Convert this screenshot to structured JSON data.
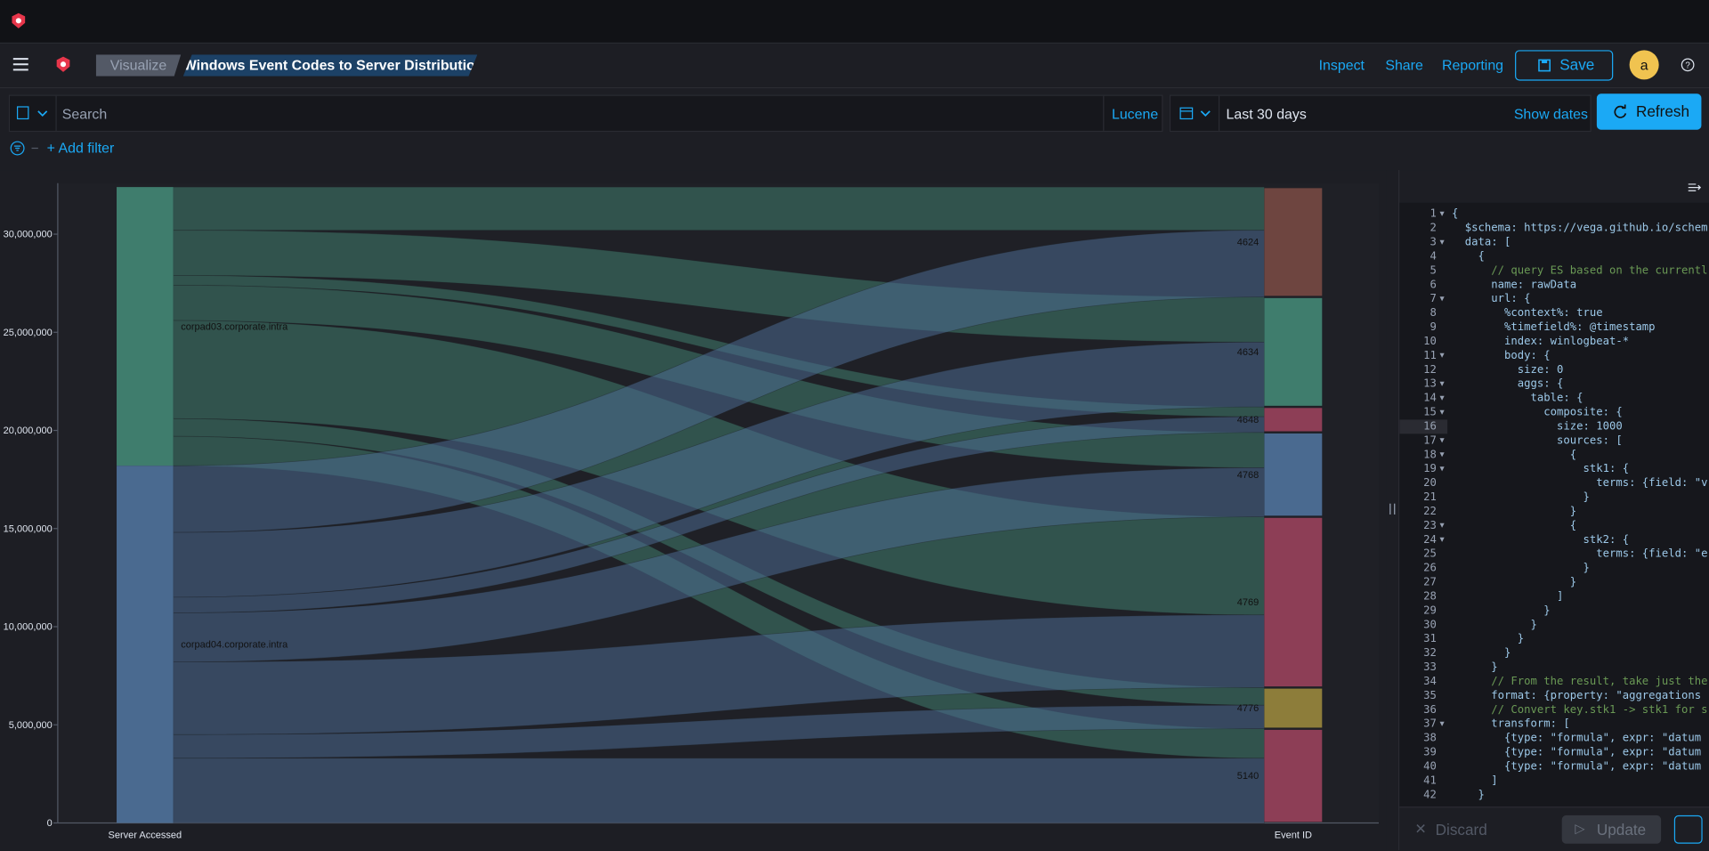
{
  "nav": {
    "breadcrumbs": [
      "Visualize",
      "Windows Event Codes to Server Distribution"
    ],
    "actions": [
      "Inspect",
      "Share",
      "Reporting"
    ],
    "save": "Save",
    "avatar": "a"
  },
  "query": {
    "placeholder": "Search",
    "language": "Lucene",
    "time": "Last 30 days",
    "show_dates": "Show dates",
    "refresh": "Refresh",
    "add_filter": "+ Add filter"
  },
  "chart_data": {
    "type": "sankey",
    "x_labels": [
      "Server Accessed",
      "Event ID"
    ],
    "ylim": [
      0,
      32600000
    ],
    "yticks": [
      0,
      {
        "value": 5000000,
        "label": "5,000,000"
      },
      {
        "value": 10000000,
        "label": "10,000,000"
      },
      {
        "value": 15000000,
        "label": "15,000,000"
      },
      {
        "value": 20000000,
        "label": "20,000,000"
      },
      {
        "value": 25000000,
        "label": "25,000,000"
      },
      {
        "value": 30000000,
        "label": "30,000,000"
      }
    ],
    "sources": [
      {
        "name": "corpad03.corporate.intra",
        "color": "#3f7d6d"
      },
      {
        "name": "corpad04.corporate.intra",
        "color": "#4a6a90"
      }
    ],
    "targets": [
      {
        "name": "4624",
        "color": "#6e4540"
      },
      {
        "name": "4634",
        "color": "#3f7d6d"
      },
      {
        "name": "4648",
        "color": "#8d3e56"
      },
      {
        "name": "4768",
        "color": "#4a6a90"
      },
      {
        "name": "4769",
        "color": "#8d3e56"
      },
      {
        "name": "4776",
        "color": "#8d7d3a"
      },
      {
        "name": "5140",
        "color": "#8d3e56"
      }
    ],
    "links": [
      [
        2200000,
        2300000,
        500000,
        1800000,
        5000000,
        900000,
        1500000
      ],
      [
        3400000,
        3300000,
        800000,
        2500000,
        3700000,
        1200000,
        3300000
      ]
    ]
  },
  "editor": {
    "line_numbers": [
      1,
      2,
      3,
      4,
      5,
      6,
      7,
      8,
      9,
      10,
      11,
      12,
      13,
      14,
      15,
      16,
      17,
      18,
      19,
      20,
      21,
      22,
      23,
      24,
      25,
      26,
      27,
      28,
      29,
      30,
      31,
      32,
      33,
      34,
      35,
      36,
      37,
      38,
      39,
      40,
      41,
      42
    ],
    "lines": [
      "{",
      "  $schema: https://vega.github.io/schem",
      "  data: [",
      "    {",
      "      // query ES based on the currentl",
      "      name: rawData",
      "      url: {",
      "        %context%: true",
      "        %timefield%: @timestamp",
      "        index: winlogbeat-*",
      "        body: {",
      "          size: 0",
      "          aggs: {",
      "            table: {",
      "              composite: {",
      "                size: 1000",
      "                sources: [",
      "                  {",
      "                    stk1: {",
      "                      terms: {field: \"v",
      "                    }",
      "                  }",
      "                  {",
      "                    stk2: {",
      "                      terms: {field: \"e",
      "                    }",
      "                  }",
      "                ]",
      "              }",
      "            }",
      "          }",
      "        }",
      "      }",
      "      // From the result, take just the",
      "      format: {property: \"aggregations",
      "      // Convert key.stk1 -> stk1 for s",
      "      transform: [",
      "        {type: \"formula\", expr: \"datum",
      "        {type: \"formula\", expr: \"datum",
      "        {type: \"formula\", expr: \"datum",
      "      ]",
      "    }"
    ],
    "discard": "Discard",
    "update": "Update"
  }
}
